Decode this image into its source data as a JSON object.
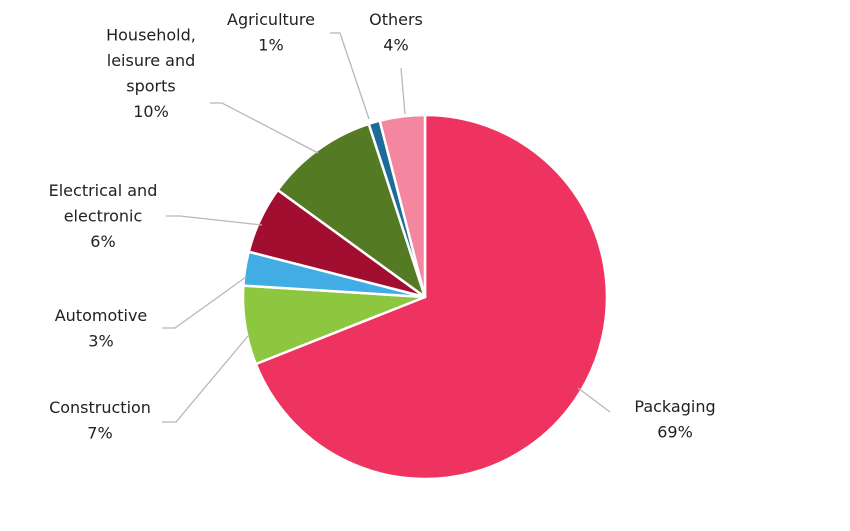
{
  "chart_data": {
    "type": "pie",
    "title": "",
    "slices": [
      {
        "label": [
          "Packaging"
        ],
        "pct_label": "69%",
        "value": 69,
        "color": "#ee3361"
      },
      {
        "label": [
          "Construction"
        ],
        "pct_label": "7%",
        "value": 7,
        "color": "#8dc63f"
      },
      {
        "label": [
          "Automotive"
        ],
        "pct_label": "3%",
        "value": 3,
        "color": "#41ade4"
      },
      {
        "label": [
          "Electrical and",
          "electronic"
        ],
        "pct_label": "6%",
        "value": 6,
        "color": "#a10e30"
      },
      {
        "label": [
          "Household,",
          "leisure and",
          "sports"
        ],
        "pct_label": "10%",
        "value": 10,
        "color": "#557a24"
      },
      {
        "label": [
          "Agriculture"
        ],
        "pct_label": "1%",
        "value": 1,
        "color": "#1d6b9a"
      },
      {
        "label": [
          "Others"
        ],
        "pct_label": "4%",
        "value": 4,
        "color": "#f5869f"
      }
    ],
    "start_angle_deg": 0,
    "direction": "clockwise",
    "legend": "none"
  }
}
